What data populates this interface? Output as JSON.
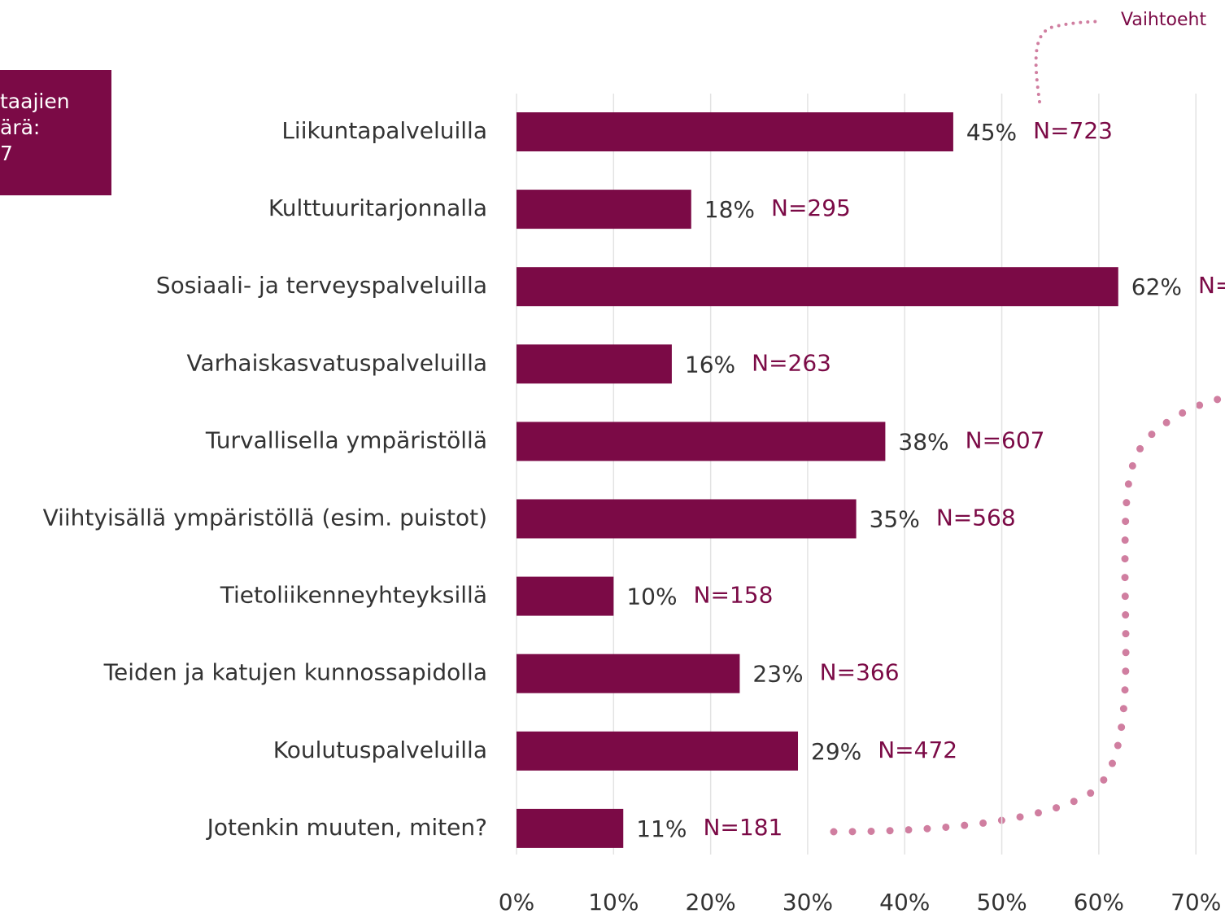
{
  "chart_data": {
    "type": "bar",
    "orientation": "horizontal",
    "box_lines": [
      "taajien",
      "ärä:",
      "7"
    ],
    "annotation": "Vaihtoeht",
    "categories": [
      "Liikuntapalveluilla",
      "Kulttuuritarjonnalla",
      "Sosiaali- ja terveyspalveluilla",
      "Varhaiskasvatuspalveluilla",
      "Turvallisella ympäristöllä",
      "Viihtyisällä ympäristöllä (esim. puistot)",
      "Tietoliikenneyhteyksillä",
      "Teiden ja katujen kunnossapidolla",
      "Koulutuspalveluilla",
      "Jotenkin muuten, miten?"
    ],
    "values": [
      45,
      18,
      62,
      16,
      38,
      35,
      10,
      23,
      29,
      11
    ],
    "value_labels": [
      "45%",
      "18%",
      "62%",
      "16%",
      "38%",
      "35%",
      "10%",
      "23%",
      "29%",
      "11%"
    ],
    "n_labels": [
      "N=723",
      "N=295",
      "N=",
      "N=263",
      "N=607",
      "N=568",
      "N=158",
      "N=366",
      "N=472",
      "N=181"
    ],
    "color": "#7b0a46",
    "xlim": [
      0,
      73
    ],
    "xticks": [
      {
        "value": 0,
        "label": "0%"
      },
      {
        "value": 10,
        "label": "10%"
      },
      {
        "value": 20,
        "label": "20%"
      },
      {
        "value": 30,
        "label": "30%"
      },
      {
        "value": 40,
        "label": "40%"
      },
      {
        "value": 50,
        "label": "50%"
      },
      {
        "value": 60,
        "label": "60%"
      },
      {
        "value": 70,
        "label": "70%"
      }
    ],
    "grid": true
  }
}
